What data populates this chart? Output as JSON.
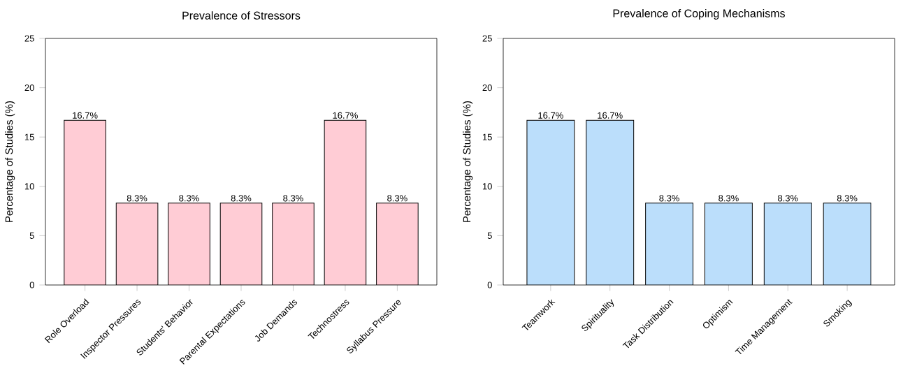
{
  "chart_data": [
    {
      "type": "bar",
      "title": "Prevalence of Stressors",
      "ylabel": "Percentage of Studies (%)",
      "categories": [
        "Role Overload",
        "Inspector Pressures",
        "Students' Behavior",
        "Parental Expectations",
        "Job Demands",
        "Technostress",
        "Syllabus Pressure"
      ],
      "values": [
        16.7,
        8.3,
        8.3,
        8.3,
        8.3,
        16.7,
        8.3
      ],
      "value_labels": [
        "16.7%",
        "8.3%",
        "8.3%",
        "8.3%",
        "8.3%",
        "16.7%",
        "8.3%"
      ],
      "color": "#ffccd5",
      "ylim": [
        0,
        25
      ],
      "yticks": [
        0,
        5,
        10,
        15,
        20,
        25
      ]
    },
    {
      "type": "bar",
      "title": "Prevalence of Coping Mechanisms",
      "ylabel": "Percentage of Studies (%)",
      "categories": [
        "Teamwork",
        "Spirituality",
        "Task Distribution",
        "Optimism",
        "Time Management",
        "Smoking"
      ],
      "values": [
        16.7,
        16.7,
        8.3,
        8.3,
        8.3,
        8.3
      ],
      "value_labels": [
        "16.7%",
        "16.7%",
        "8.3%",
        "8.3%",
        "8.3%",
        "8.3%"
      ],
      "color": "#bbdefb",
      "ylim": [
        0,
        25
      ],
      "yticks": [
        0,
        5,
        10,
        15,
        20,
        25
      ]
    }
  ]
}
